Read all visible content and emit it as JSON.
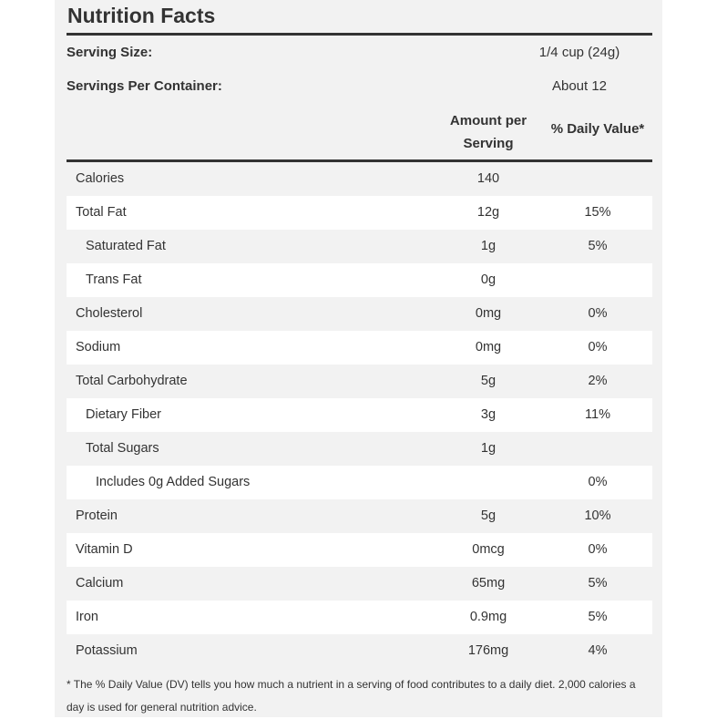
{
  "title": "Nutrition Facts",
  "serving": [
    [
      "Serving Size:",
      "1/4 cup (24g)"
    ],
    [
      "Servings Per Container:",
      "About 12"
    ]
  ],
  "header": {
    "amount": "Amount per Serving",
    "daily_value": "% Daily Value*"
  },
  "table": {
    "rows": [
      [
        "Calories",
        "140",
        null
      ],
      [
        "Total Fat",
        "12g",
        "15%"
      ],
      [
        "Saturated Fat",
        "1g",
        "5%"
      ],
      [
        "Trans Fat",
        "0g",
        null
      ],
      [
        "Cholesterol",
        "0mg",
        "0%"
      ],
      [
        "Sodium",
        "0mg",
        "0%"
      ],
      [
        "Total Carbohydrate",
        "5g",
        "2%"
      ],
      [
        "Dietary Fiber",
        "3g",
        "11%"
      ],
      [
        "Total Sugars",
        "1g",
        null
      ],
      [
        "Includes 0g Added Sugars",
        null,
        "0%"
      ],
      [
        "Protein",
        "5g",
        "10%"
      ],
      [
        "Vitamin D",
        "0mcg",
        "0%"
      ],
      [
        "Calcium",
        "65mg",
        "5%"
      ],
      [
        "Iron",
        "0.9mg",
        "5%"
      ],
      [
        "Potassium",
        "176mg",
        "4%"
      ]
    ]
  },
  "footnote": "* The % Daily Value (DV) tells you how much a nutrient in a serving of food contributes to a daily diet. 2,000 calories a day is used for general nutrition advice."
}
